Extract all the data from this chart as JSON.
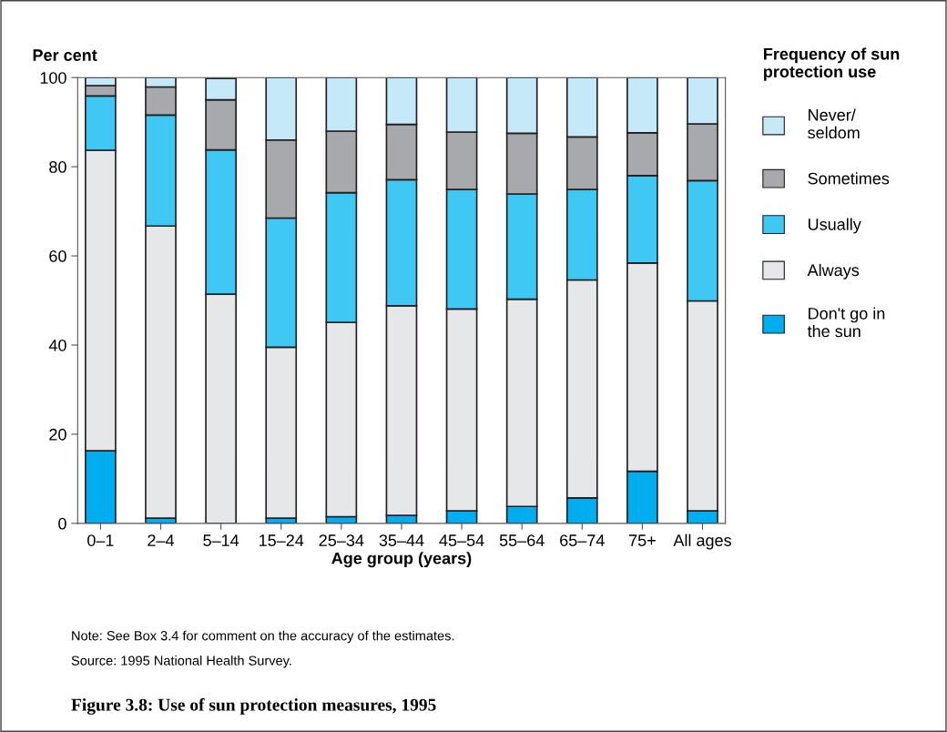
{
  "chart_data": {
    "type": "bar",
    "stacked": true,
    "title": "Figure 3.8: Use of sun protection measures, 1995",
    "xlabel": "Age group (years)",
    "ylabel": "Per cent",
    "legend_title": "Frequency of sun\nprotection use",
    "categories": [
      "0–1",
      "2–4",
      "5–14",
      "15–24",
      "25–34",
      "35–44",
      "45–54",
      "55–64",
      "65–74",
      "75+",
      "All ages"
    ],
    "series": [
      {
        "name": "Don't go in\nthe sun",
        "color": "#00aeef",
        "values": [
          16.3,
          1.2,
          null,
          1.2,
          1.5,
          1.8,
          2.8,
          3.8,
          5.7,
          11.7,
          2.8
        ]
      },
      {
        "name": "Always",
        "color": "#e6e7e8",
        "values": [
          67.4,
          65.5,
          51.4,
          38.3,
          43.6,
          47.0,
          45.3,
          46.5,
          48.9,
          46.7,
          47.1
        ]
      },
      {
        "name": "Usually",
        "color": "#40c8f4",
        "values": [
          12.2,
          24.9,
          32.4,
          29.0,
          29.1,
          28.3,
          26.8,
          23.6,
          20.3,
          19.6,
          27.0
        ]
      },
      {
        "name": "Sometimes",
        "color": "#a7a9ac",
        "values": [
          2.3,
          6.3,
          11.2,
          17.5,
          13.8,
          12.4,
          12.9,
          13.6,
          11.8,
          9.6,
          12.7
        ]
      },
      {
        "name": "Never/\nseldom",
        "color": "#c6e9f9",
        "values": [
          1.8,
          2.1,
          4.8,
          14.0,
          12.0,
          10.5,
          12.2,
          12.5,
          13.3,
          12.4,
          10.4
        ]
      }
    ],
    "ylim": [
      0,
      100
    ],
    "yticks": [
      0,
      20,
      40,
      60,
      80,
      100
    ],
    "grid": false,
    "legend": "right",
    "annotations": [
      "Note: See Box 3.4 for comment on the accuracy of the estimates.",
      "Source: 1995 National Health Survey."
    ]
  }
}
